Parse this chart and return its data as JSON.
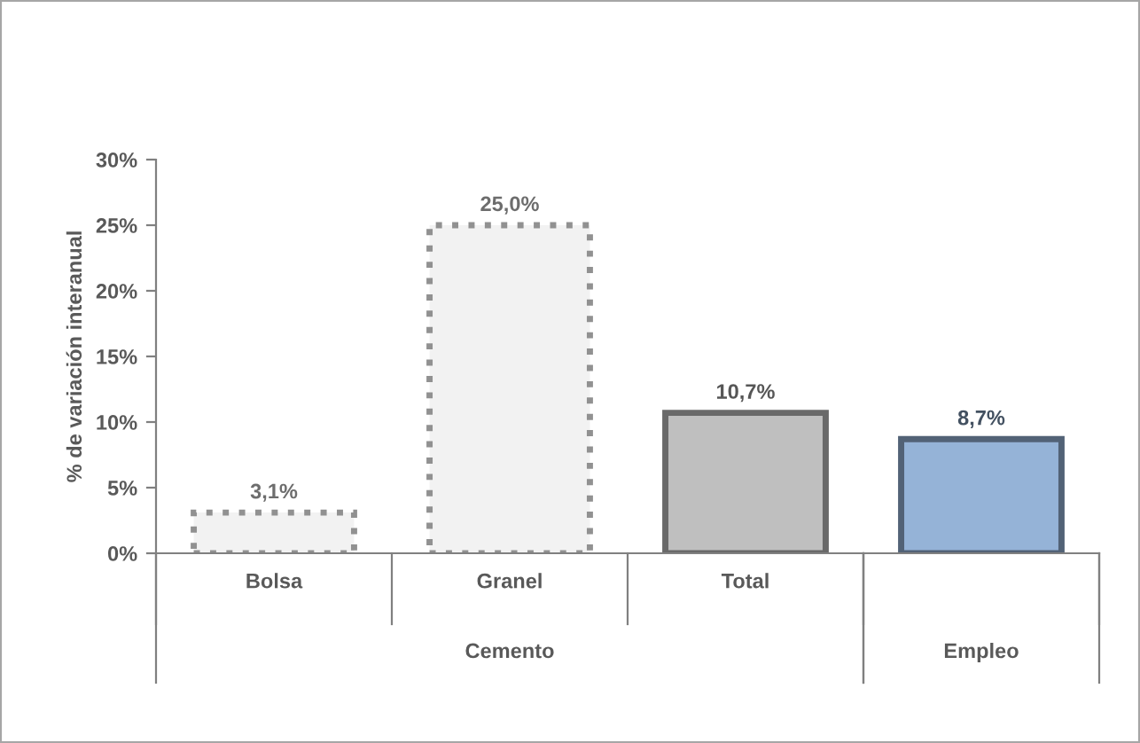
{
  "chart_data": {
    "type": "bar",
    "ylabel": "% de variación interanual",
    "categories": [
      "Bolsa",
      "Granel",
      "Total",
      null
    ],
    "series": [
      {
        "color": "#f2f2f2",
        "values": [
          3.1,
          25.0,
          null,
          null
        ],
        "value_labels": [
          "3,1%",
          "25,0%",
          null,
          null
        ],
        "line_style": "dotted"
      },
      {
        "color": "#bfbfbf",
        "values": [
          null,
          null,
          10.7,
          null
        ],
        "value_labels": [
          null,
          null,
          "10,7%",
          null
        ],
        "line_style": "solid"
      },
      {
        "color": "#95b3d7",
        "values": [
          null,
          null,
          null,
          8.7
        ],
        "value_labels": [
          null,
          null,
          null,
          "8,7%"
        ],
        "line_style": "solid"
      }
    ],
    "ylim": [
      0,
      30
    ],
    "yticks": [
      {
        "value": 0,
        "label": "0%"
      },
      {
        "value": 5,
        "label": "5%"
      },
      {
        "value": 10,
        "label": "10%"
      },
      {
        "value": 15,
        "label": "15%"
      },
      {
        "value": 20,
        "label": "20%"
      },
      {
        "value": 25,
        "label": "25%"
      },
      {
        "value": 30,
        "label": "30%"
      }
    ],
    "annotations": [
      "Cemento",
      "Empleo"
    ],
    "grid": false,
    "legend": false
  }
}
